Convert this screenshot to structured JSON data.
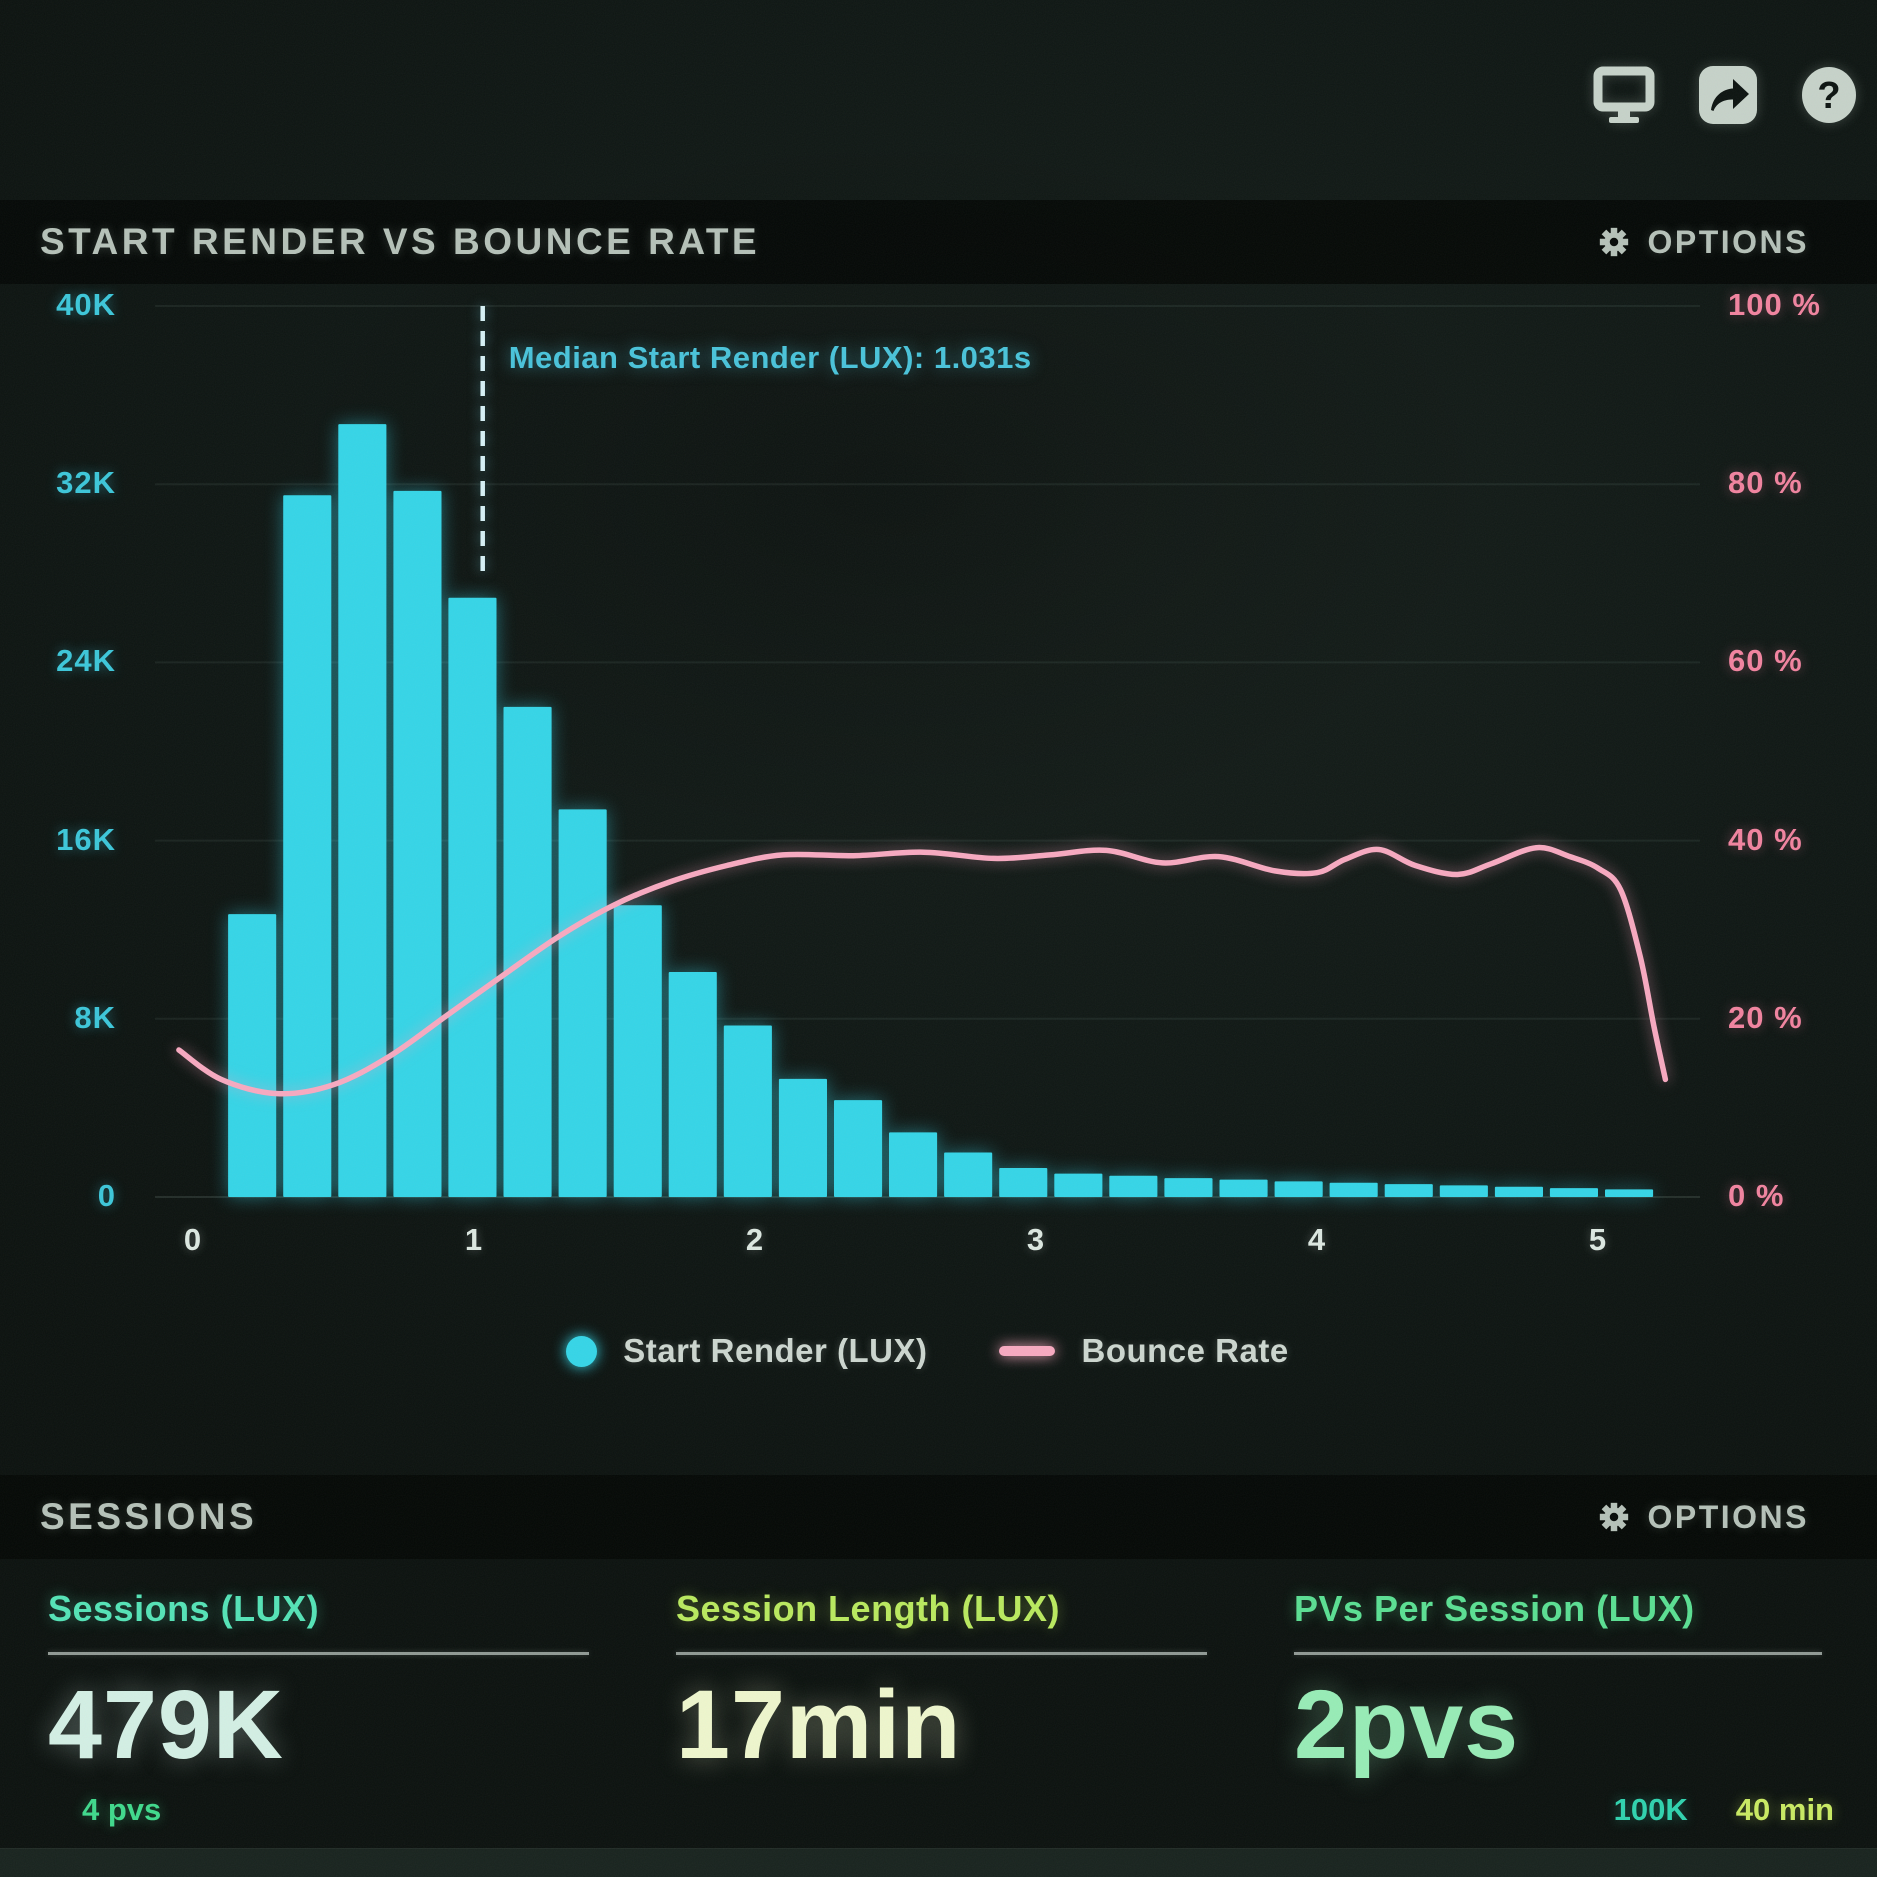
{
  "window": {
    "topbar": {
      "icons": [
        "monitor-icon",
        "share-icon",
        "help-icon"
      ]
    }
  },
  "chart_panel": {
    "title": "START RENDER VS BOUNCE RATE",
    "options_label": "OPTIONS",
    "median_label": "Median Start Render (LUX): 1.031s",
    "legend": [
      {
        "label": "Start Render (LUX)",
        "marker": "dot",
        "color": "#35d5e7"
      },
      {
        "label": "Bounce Rate",
        "marker": "dash",
        "color": "#f7a9c0"
      }
    ]
  },
  "chart_data": {
    "type": "bar",
    "title": "START RENDER VS BOUNCE RATE",
    "x_axis": {
      "unit": "seconds",
      "ticks": [
        0,
        1,
        2,
        3,
        4,
        5
      ],
      "range": [
        -0.14,
        5.36
      ]
    },
    "y_axis_left": {
      "tick_labels": [
        "0",
        "8K",
        "16K",
        "24K",
        "32K",
        "40K"
      ],
      "range": [
        0,
        40000
      ]
    },
    "y_axis_right": {
      "tick_labels": [
        "0 %",
        "20 %",
        "40 %",
        "60 %",
        "80 %",
        "100 %"
      ],
      "range": [
        0,
        100
      ]
    },
    "grid": "horizontal",
    "legend_position": "bottom-center",
    "median": {
      "label": "Median Start Render (LUX): 1.031s",
      "value_s": 1.031
    },
    "histogram": {
      "name": "Start Render (LUX)",
      "color": "#35d5e7",
      "bin_start_s": 0.125,
      "bin_pitch_s": 0.196,
      "bar_width_s": 0.171,
      "values": [
        12700,
        31500,
        34700,
        31700,
        26900,
        22000,
        17400,
        13100,
        10100,
        7700,
        5300,
        4350,
        2900,
        2000,
        1300,
        1050,
        950,
        850,
        780,
        700,
        640,
        580,
        520,
        460,
        400,
        340
      ]
    },
    "bounce_line": {
      "name": "Bounce Rate",
      "color": "#f7a9c0",
      "points": [
        [
          -0.05,
          16.5
        ],
        [
          0.1,
          13.2
        ],
        [
          0.3,
          11.6
        ],
        [
          0.5,
          12.6
        ],
        [
          0.7,
          15.8
        ],
        [
          0.9,
          20.3
        ],
        [
          1.1,
          24.8
        ],
        [
          1.3,
          29.2
        ],
        [
          1.5,
          32.8
        ],
        [
          1.7,
          35.4
        ],
        [
          1.9,
          37.2
        ],
        [
          2.1,
          38.4
        ],
        [
          2.35,
          38.3
        ],
        [
          2.6,
          38.7
        ],
        [
          2.85,
          38.0
        ],
        [
          3.05,
          38.4
        ],
        [
          3.25,
          38.9
        ],
        [
          3.45,
          37.5
        ],
        [
          3.65,
          38.2
        ],
        [
          3.85,
          36.6
        ],
        [
          4.0,
          36.4
        ],
        [
          4.1,
          37.9
        ],
        [
          4.22,
          39.0
        ],
        [
          4.35,
          37.2
        ],
        [
          4.5,
          36.2
        ],
        [
          4.62,
          37.4
        ],
        [
          4.78,
          39.2
        ],
        [
          4.9,
          38.2
        ],
        [
          5.0,
          36.9
        ],
        [
          5.08,
          34.5
        ],
        [
          5.15,
          27.0
        ],
        [
          5.2,
          19.0
        ],
        [
          5.24,
          13.2
        ]
      ]
    }
  },
  "sessions_panel": {
    "title": "SESSIONS",
    "options_label": "OPTIONS",
    "metrics": [
      {
        "id": "sessions",
        "label": "Sessions (LUX)",
        "value": "479K",
        "label_color": "#54e3b6",
        "value_color": "#d3efe4",
        "footnote": {
          "text": "4 pvs",
          "color": "#3fd98c"
        }
      },
      {
        "id": "session-length",
        "label": "Session Length (LUX)",
        "value": "17min",
        "label_color": "#b9e95e",
        "value_color": "#eef6cd"
      },
      {
        "id": "pvs-per-session",
        "label": "PVs Per Session (LUX)",
        "value": "2pvs",
        "label_color": "#5adf92",
        "value_color": "#97ecb6",
        "footnotes": [
          {
            "text": "100K",
            "color": "#2fd2ae"
          },
          {
            "text": "40 min",
            "color": "#c9ea62"
          }
        ]
      }
    ]
  }
}
